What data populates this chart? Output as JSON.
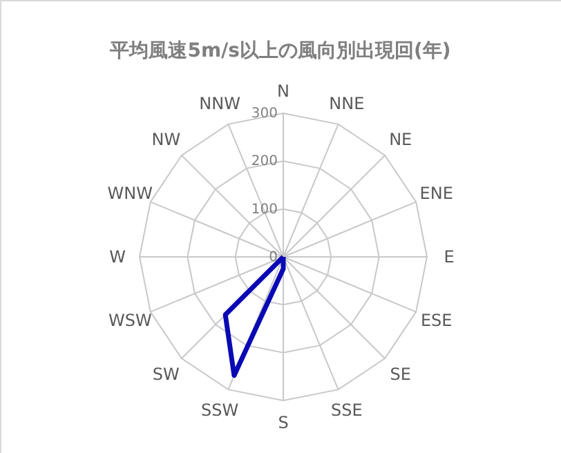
{
  "chart_data": {
    "type": "radar",
    "title": "平均風速5m/s以上の風向別出現回(年)",
    "categories": [
      "N",
      "NNE",
      "NE",
      "ENE",
      "E",
      "ESE",
      "SE",
      "SSE",
      "S",
      "SSW",
      "SW",
      "WSW",
      "W",
      "WNW",
      "NW",
      "NNW"
    ],
    "series": [
      {
        "color": "#0a0ab4",
        "values": [
          0,
          0,
          0,
          0,
          0,
          0,
          0,
          0,
          25,
          268,
          171,
          0,
          0,
          0,
          0,
          0
        ]
      }
    ],
    "ylim": [
      0,
      300
    ],
    "yticks": [
      0,
      100,
      200,
      300
    ],
    "grid": true,
    "marker": "none"
  }
}
